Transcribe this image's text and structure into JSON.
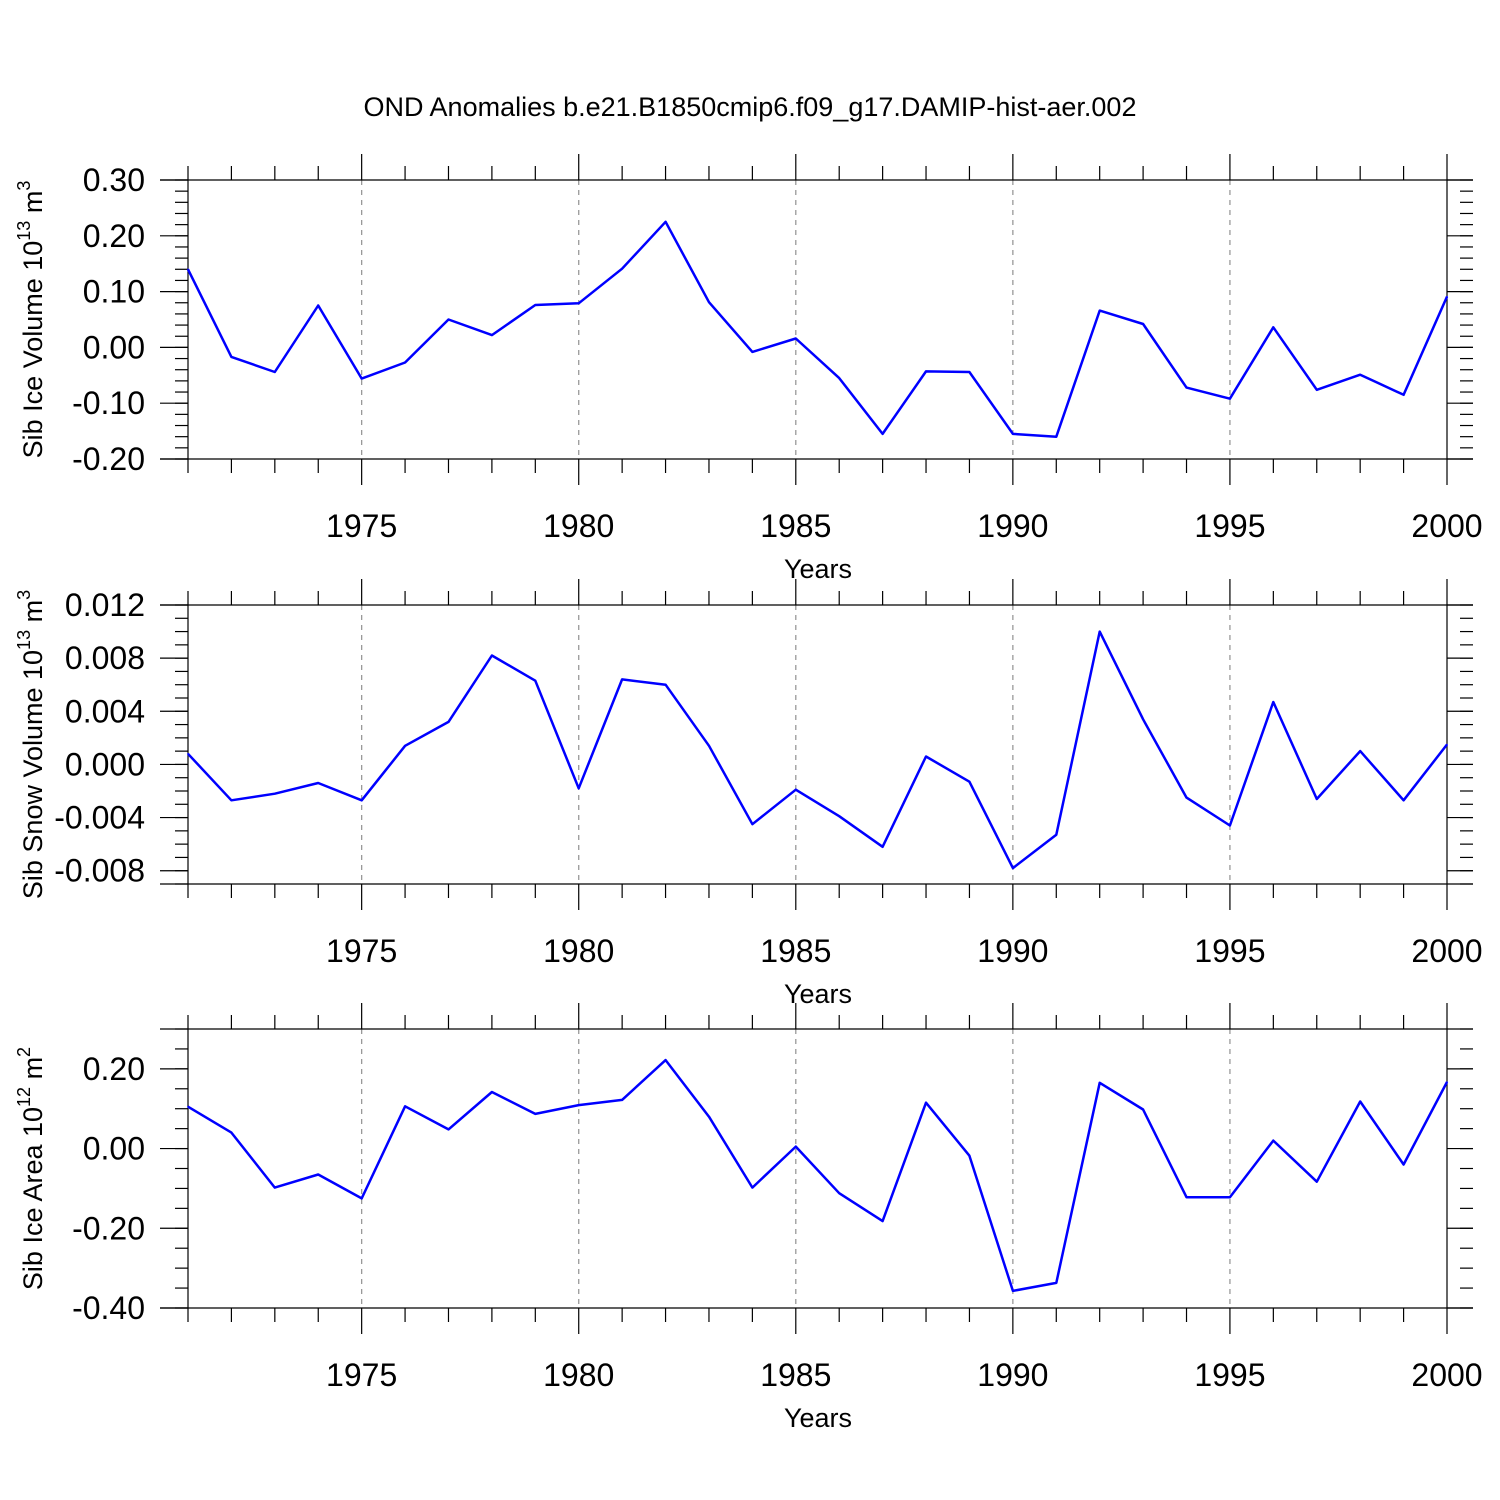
{
  "title": "OND Anomalies b.e21.B1850cmip6.f09_g17.DAMIP-hist-aer.002",
  "colors": {
    "series": "#0000ff",
    "grid": "#999999",
    "axes": "#000000"
  },
  "chart_data": [
    {
      "type": "line",
      "ylabel_main": "Sib Ice Volume 10",
      "ylabel_exp": "13",
      "ylabel_unit": "m",
      "ylabel_unit_exp": "3",
      "xlabel": "Years",
      "xlim": [
        1971,
        2000
      ],
      "ylim": [
        -0.2,
        0.3
      ],
      "yticks": [
        -0.2,
        -0.1,
        0.0,
        0.1,
        0.2,
        0.3
      ],
      "ytick_labels": [
        "-0.20",
        "-0.10",
        "0.00",
        "0.10",
        "0.20",
        "0.30"
      ],
      "yminor_step": 0.02,
      "xticks": [
        1975,
        1980,
        1985,
        1990,
        1995,
        2000
      ],
      "xtick_labels": [
        "1975",
        "1980",
        "1985",
        "1990",
        "1995",
        "2000"
      ],
      "grid_x": [
        1975,
        1980,
        1985,
        1990,
        1995
      ],
      "x": [
        1971,
        1972,
        1973,
        1974,
        1975,
        1976,
        1977,
        1978,
        1979,
        1980,
        1981,
        1982,
        1983,
        1984,
        1985,
        1986,
        1987,
        1988,
        1989,
        1990,
        1991,
        1992,
        1993,
        1994,
        1995,
        1996,
        1997,
        1998,
        1999,
        2000
      ],
      "values": [
        0.14,
        -0.017,
        -0.044,
        0.075,
        -0.056,
        -0.027,
        0.05,
        0.022,
        0.076,
        0.079,
        0.141,
        0.225,
        0.081,
        -0.008,
        0.016,
        -0.055,
        -0.155,
        -0.043,
        -0.044,
        -0.155,
        -0.16,
        0.066,
        0.042,
        -0.072,
        -0.092,
        0.036,
        -0.076,
        -0.049,
        -0.085,
        0.091
      ]
    },
    {
      "type": "line",
      "ylabel_main": "Sib Snow Volume 10",
      "ylabel_exp": "13",
      "ylabel_unit": "m",
      "ylabel_unit_exp": "3",
      "xlabel": "Years",
      "xlim": [
        1971,
        2000
      ],
      "ylim": [
        -0.009,
        0.012
      ],
      "yticks": [
        -0.008,
        -0.004,
        0.0,
        0.004,
        0.008,
        0.012
      ],
      "ytick_labels": [
        "-0.008",
        "-0.004",
        "0.000",
        "0.004",
        "0.008",
        "0.012"
      ],
      "yminor_step": 0.001,
      "xticks": [
        1975,
        1980,
        1985,
        1990,
        1995,
        2000
      ],
      "xtick_labels": [
        "1975",
        "1980",
        "1985",
        "1990",
        "1995",
        "2000"
      ],
      "grid_x": [
        1975,
        1980,
        1985,
        1990,
        1995
      ],
      "x": [
        1971,
        1972,
        1973,
        1974,
        1975,
        1976,
        1977,
        1978,
        1979,
        1980,
        1981,
        1982,
        1983,
        1984,
        1985,
        1986,
        1987,
        1988,
        1989,
        1990,
        1991,
        1992,
        1993,
        1994,
        1995,
        1996,
        1997,
        1998,
        1999,
        2000
      ],
      "values": [
        0.0008,
        -0.0027,
        -0.0022,
        -0.0014,
        -0.0027,
        0.0014,
        0.0032,
        0.0082,
        0.0063,
        -0.0018,
        0.0064,
        0.006,
        0.0014,
        -0.0045,
        -0.0019,
        -0.0039,
        -0.0062,
        0.0006,
        -0.0013,
        -0.0078,
        -0.0053,
        0.01,
        0.0034,
        -0.0025,
        -0.0046,
        0.0047,
        -0.0026,
        0.001,
        -0.0027,
        0.0015
      ]
    },
    {
      "type": "line",
      "ylabel_main": "Sib Ice Area 10",
      "ylabel_exp": "12",
      "ylabel_unit": "m",
      "ylabel_unit_exp": "2",
      "xlabel": "Years",
      "xlim": [
        1971,
        2000
      ],
      "ylim": [
        -0.4,
        0.3
      ],
      "yticks": [
        -0.4,
        -0.2,
        0.0,
        0.2
      ],
      "ytick_labels": [
        "-0.40",
        "-0.20",
        "0.00",
        "0.20"
      ],
      "yminor_step": 0.05,
      "xticks": [
        1975,
        1980,
        1985,
        1990,
        1995,
        2000
      ],
      "xtick_labels": [
        "1975",
        "1980",
        "1985",
        "1990",
        "1995",
        "2000"
      ],
      "grid_x": [
        1975,
        1980,
        1985,
        1990,
        1995
      ],
      "x": [
        1971,
        1972,
        1973,
        1974,
        1975,
        1976,
        1977,
        1978,
        1979,
        1980,
        1981,
        1982,
        1983,
        1984,
        1985,
        1986,
        1987,
        1988,
        1989,
        1990,
        1991,
        1992,
        1993,
        1994,
        1995,
        1996,
        1997,
        1998,
        1999,
        2000
      ],
      "values": [
        0.105,
        0.04,
        -0.098,
        -0.065,
        -0.125,
        0.106,
        0.048,
        0.142,
        0.087,
        0.109,
        0.122,
        0.222,
        0.08,
        -0.098,
        0.005,
        -0.112,
        -0.182,
        0.115,
        -0.018,
        -0.357,
        -0.337,
        0.165,
        0.098,
        -0.122,
        -0.122,
        0.02,
        -0.083,
        0.118,
        -0.04,
        0.167
      ]
    }
  ]
}
